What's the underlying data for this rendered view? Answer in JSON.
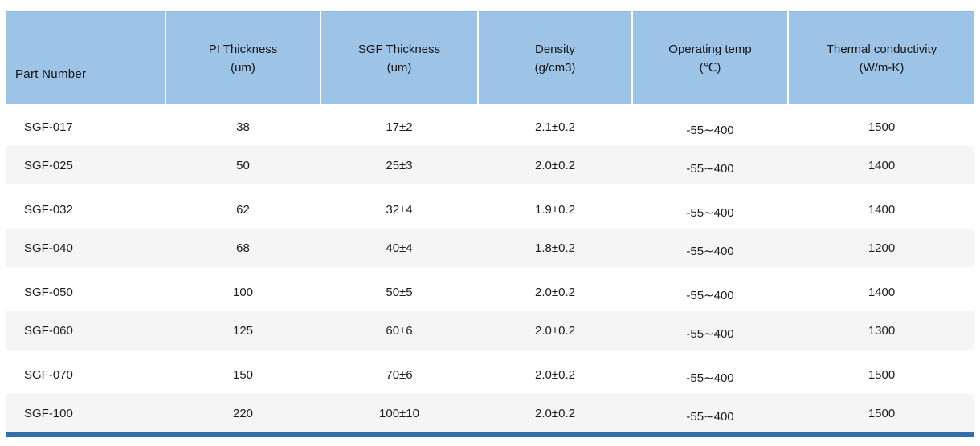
{
  "table": {
    "columns": [
      {
        "label": "Part Number",
        "sub": ""
      },
      {
        "label": "PI Thickness",
        "sub": "(um)"
      },
      {
        "label": "SGF Thickness",
        "sub": "(um)"
      },
      {
        "label": "Density",
        "sub": "(g/cm3)"
      },
      {
        "label": "Operating temp",
        "sub": "(℃)"
      },
      {
        "label": "Thermal conductivity",
        "sub": "(W/m-K)"
      }
    ],
    "rows": [
      [
        "SGF-017",
        "38",
        "17±2",
        "2.1±0.2",
        "-55∼400",
        "1500"
      ],
      [
        "SGF-025",
        "50",
        "25±3",
        "2.0±0.2",
        "-55∼400",
        "1400"
      ],
      [
        "SGF-032",
        "62",
        "32±4",
        "1.9±0.2",
        "-55∼400",
        "1400"
      ],
      [
        "SGF-040",
        "68",
        "40±4",
        "1.8±0.2",
        "-55∼400",
        "1200"
      ],
      [
        "SGF-050",
        "100",
        "50±5",
        "2.0±0.2",
        "-55∼400",
        "1400"
      ],
      [
        "SGF-060",
        "125",
        "60±6",
        "2.0±0.2",
        "-55∼400",
        "1300"
      ],
      [
        "SGF-070",
        "150",
        "70±6",
        "2.0±0.2",
        "-55∼400",
        "1500"
      ],
      [
        "SGF-100",
        "220",
        "100±10",
        "2.0±0.2",
        "-55∼400",
        "1500"
      ]
    ],
    "colors": {
      "header_bg": "#9dc3e6",
      "stripe_bg": "#f5f5f5",
      "bottom_bar": "#2f6fae"
    }
  }
}
